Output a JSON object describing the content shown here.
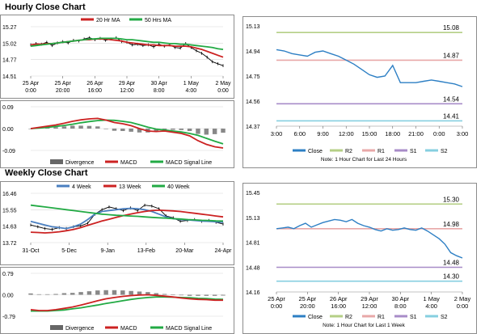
{
  "sections": {
    "hourly_title": "Hourly Close Chart",
    "weekly_title": "Weekly Close Chart"
  },
  "colors": {
    "ma_short": "#cc2222",
    "ma_long": "#22aa44",
    "week4": "#4a7fc0",
    "close": "#2d7fc4",
    "r2": "#b5cf86",
    "r1": "#e8a8a8",
    "s1": "#a88cc8",
    "s2": "#86cfe0",
    "divergence": "#888888"
  },
  "chart_data": [
    {
      "id": "hourly_price",
      "type": "line",
      "legend": [
        "20 Hr MA",
        "50 Hrs MA"
      ],
      "ylim": [
        14.51,
        15.27
      ],
      "yticks": [
        "15.27",
        "15.02",
        "14.77",
        "14.51"
      ],
      "xticks": [
        [
          "25 Apr",
          "0:00"
        ],
        [
          "25 Apr",
          "20:00"
        ],
        [
          "26 Apr",
          "16:00"
        ],
        [
          "29 Apr",
          "12:00"
        ],
        [
          "30 Apr",
          "8:00"
        ],
        [
          "1 May",
          "4:00"
        ],
        [
          "2 May",
          "0:00"
        ]
      ],
      "price": [
        14.99,
        15.01,
        15.0,
        15.03,
        14.98,
        15.02,
        15.04,
        15.02,
        15.06,
        15.05,
        15.08,
        15.1,
        15.07,
        15.09,
        15.06,
        15.08,
        15.1,
        15.04,
        15.03,
        14.99,
        15.0,
        14.98,
        14.99,
        14.96,
        15.0,
        14.97,
        14.99,
        14.95,
        14.94,
        15.01,
        14.95,
        14.9,
        14.86,
        14.8,
        14.73,
        14.7,
        14.67
      ],
      "ma20": [
        14.99,
        15.0,
        15.0,
        15.01,
        15.01,
        15.02,
        15.03,
        15.04,
        15.05,
        15.06,
        15.07,
        15.07,
        15.08,
        15.08,
        15.08,
        15.07,
        15.06,
        15.05,
        15.03,
        15.02,
        15.01,
        15.0,
        14.99,
        14.99,
        14.98,
        14.98,
        14.98,
        14.97,
        14.97,
        14.97,
        14.96,
        14.94,
        14.92,
        14.89,
        14.86,
        14.83,
        14.8
      ],
      "ma50": [
        14.97,
        14.98,
        14.99,
        15.0,
        15.01,
        15.02,
        15.03,
        15.04,
        15.05,
        15.06,
        15.07,
        15.08,
        15.08,
        15.09,
        15.09,
        15.09,
        15.09,
        15.08,
        15.07,
        15.07,
        15.06,
        15.05,
        15.04,
        15.03,
        15.03,
        15.02,
        15.01,
        15.01,
        15.0,
        15.0,
        14.99,
        14.98,
        14.97,
        14.96,
        14.95,
        14.93,
        14.92
      ]
    },
    {
      "id": "hourly_macd",
      "type": "bar",
      "legend": [
        "Divergence",
        "MACD",
        "MACD Signal Line"
      ],
      "ylim": [
        -0.09,
        0.09
      ],
      "yticks": [
        "0.09",
        "0.00",
        "-0.09"
      ],
      "macd": [
        0.0,
        0.005,
        0.01,
        0.015,
        0.022,
        0.03,
        0.036,
        0.04,
        0.042,
        0.035,
        0.025,
        0.02,
        0.012,
        0.0,
        -0.01,
        -0.012,
        -0.01,
        -0.015,
        -0.02,
        -0.03,
        -0.05,
        -0.065,
        -0.075,
        -0.08
      ],
      "signal": [
        0.0,
        0.002,
        0.005,
        0.009,
        0.013,
        0.018,
        0.024,
        0.029,
        0.033,
        0.035,
        0.034,
        0.03,
        0.025,
        0.016,
        0.006,
        -0.002,
        -0.006,
        -0.01,
        -0.014,
        -0.02,
        -0.028,
        -0.04,
        -0.052,
        -0.063
      ],
      "divergence": [
        0.0,
        0.003,
        0.005,
        0.006,
        0.009,
        0.012,
        0.012,
        0.011,
        0.009,
        0.0,
        -0.009,
        -0.01,
        -0.013,
        -0.016,
        -0.016,
        -0.01,
        -0.004,
        -0.005,
        -0.006,
        -0.01,
        -0.022,
        -0.025,
        -0.023,
        -0.017
      ]
    },
    {
      "id": "hourly_pivot",
      "type": "line",
      "ylim": [
        14.37,
        15.13
      ],
      "yticks": [
        "15.13",
        "14.94",
        "14.75",
        "14.56",
        "14.37"
      ],
      "xticks": [
        "3:00",
        "6:00",
        "9:00",
        "12:00",
        "15:00",
        "18:00",
        "21:00",
        "0:00",
        "3:00"
      ],
      "levels": [
        {
          "name": "R2",
          "value": 15.08,
          "label": "15.08"
        },
        {
          "name": "R1",
          "value": 14.87,
          "label": "14.87"
        },
        {
          "name": "S1",
          "value": 14.54,
          "label": "14.54"
        },
        {
          "name": "S2",
          "value": 14.41,
          "label": "14.41"
        }
      ],
      "close": [
        14.95,
        14.94,
        14.92,
        14.91,
        14.9,
        14.93,
        14.94,
        14.92,
        14.9,
        14.87,
        14.84,
        14.8,
        14.76,
        14.74,
        14.75,
        14.83,
        14.7,
        14.7,
        14.7,
        14.71,
        14.72,
        14.71,
        14.7,
        14.69,
        14.67
      ],
      "legend": [
        "Close",
        "R2",
        "R1",
        "S1",
        "S2"
      ],
      "note": "Note: 1 Hour Chart for Last 24 Hours"
    },
    {
      "id": "weekly_price",
      "type": "line",
      "legend": [
        "4 Week",
        "13 Week",
        "40 Week"
      ],
      "ylim": [
        13.72,
        16.46
      ],
      "yticks": [
        "16.46",
        "15.55",
        "14.63",
        "13.72"
      ],
      "xticks": [
        "31-Oct",
        "5-Dec",
        "9-Jan",
        "13-Feb",
        "20-Mar",
        "24-Apr"
      ],
      "price": [
        14.7,
        14.6,
        14.5,
        14.45,
        14.55,
        14.5,
        14.6,
        14.65,
        14.8,
        15.3,
        15.55,
        15.7,
        15.6,
        15.5,
        15.65,
        15.5,
        15.8,
        15.75,
        15.6,
        15.2,
        15.1,
        14.9,
        14.95,
        15.0,
        14.9,
        14.95,
        14.85,
        14.75
      ],
      "wk4": [
        14.9,
        14.8,
        14.7,
        14.6,
        14.55,
        14.5,
        14.6,
        14.75,
        15.0,
        15.3,
        15.45,
        15.5,
        15.55,
        15.6,
        15.62,
        15.6,
        15.55,
        15.45,
        15.3,
        15.15,
        15.05,
        15.0,
        14.98,
        14.95,
        14.92,
        14.9,
        14.88,
        14.85
      ],
      "wk13": [
        14.3,
        14.28,
        14.26,
        14.28,
        14.32,
        14.38,
        14.45,
        14.55,
        14.68,
        14.8,
        14.92,
        15.02,
        15.12,
        15.22,
        15.3,
        15.38,
        15.45,
        15.5,
        15.52,
        15.5,
        15.48,
        15.45,
        15.4,
        15.35,
        15.3,
        15.25,
        15.2,
        15.15
      ],
      "wk40": [
        15.8,
        15.75,
        15.7,
        15.65,
        15.6,
        15.55,
        15.5,
        15.45,
        15.4,
        15.35,
        15.3,
        15.27,
        15.24,
        15.22,
        15.2,
        15.18,
        15.15,
        15.12,
        15.1,
        15.08,
        15.05,
        15.03,
        15.0,
        14.98,
        14.96,
        14.95,
        14.93,
        14.92
      ]
    },
    {
      "id": "weekly_macd",
      "type": "bar",
      "legend": [
        "Divergence",
        "MACD",
        "MACD Signal Line"
      ],
      "ylim": [
        -0.79,
        0.79
      ],
      "yticks": [
        "0.79",
        "0.00",
        "-0.79"
      ],
      "macd": [
        -0.55,
        -0.58,
        -0.58,
        -0.55,
        -0.5,
        -0.45,
        -0.38,
        -0.3,
        -0.22,
        -0.15,
        -0.1,
        -0.06,
        -0.03,
        -0.01,
        0.0,
        -0.02,
        -0.05,
        -0.08,
        -0.12,
        -0.15,
        -0.17,
        -0.18,
        -0.2,
        -0.2
      ],
      "signal": [
        -0.6,
        -0.6,
        -0.6,
        -0.58,
        -0.56,
        -0.52,
        -0.48,
        -0.43,
        -0.38,
        -0.32,
        -0.27,
        -0.22,
        -0.17,
        -0.13,
        -0.1,
        -0.08,
        -0.08,
        -0.09,
        -0.1,
        -0.11,
        -0.13,
        -0.14,
        -0.16,
        -0.17
      ],
      "divergence": [
        0.05,
        0.02,
        0.02,
        0.03,
        0.06,
        0.07,
        0.1,
        0.13,
        0.16,
        0.17,
        0.17,
        0.16,
        0.14,
        0.12,
        0.1,
        0.06,
        0.03,
        0.01,
        -0.02,
        -0.04,
        -0.04,
        -0.04,
        -0.04,
        -0.03
      ]
    },
    {
      "id": "weekly_pivot",
      "type": "line",
      "ylim": [
        14.16,
        15.45
      ],
      "yticks": [
        "15.45",
        "15.13",
        "14.81",
        "14.48",
        "14.16"
      ],
      "xticks": [
        [
          "25 Apr",
          "0:00"
        ],
        [
          "25 Apr",
          "20:00"
        ],
        [
          "26 Apr",
          "16:00"
        ],
        [
          "29 Apr",
          "12:00"
        ],
        [
          "30 Apr",
          "8:00"
        ],
        [
          "1 May",
          "4:00"
        ],
        [
          "2 May",
          "0:00"
        ]
      ],
      "levels": [
        {
          "name": "R2",
          "value": 15.3,
          "label": "15.30"
        },
        {
          "name": "R1",
          "value": 14.98,
          "label": "14.98"
        },
        {
          "name": "S1",
          "value": 14.48,
          "label": "14.48"
        },
        {
          "name": "S2",
          "value": 14.3,
          "label": "14.30"
        }
      ],
      "close": [
        14.98,
        14.99,
        15.0,
        14.98,
        15.02,
        15.05,
        15.0,
        15.03,
        15.06,
        15.08,
        15.1,
        15.09,
        15.07,
        15.1,
        15.05,
        15.02,
        15.0,
        14.97,
        14.95,
        14.98,
        14.96,
        14.97,
        14.99,
        14.97,
        14.96,
        14.99,
        14.95,
        14.9,
        14.85,
        14.78,
        14.67,
        14.63,
        14.6
      ],
      "legend": [
        "Close",
        "R2",
        "R1",
        "S1",
        "S2"
      ],
      "note": "Note: 1 Hour Chart for Last 1 Week"
    }
  ]
}
